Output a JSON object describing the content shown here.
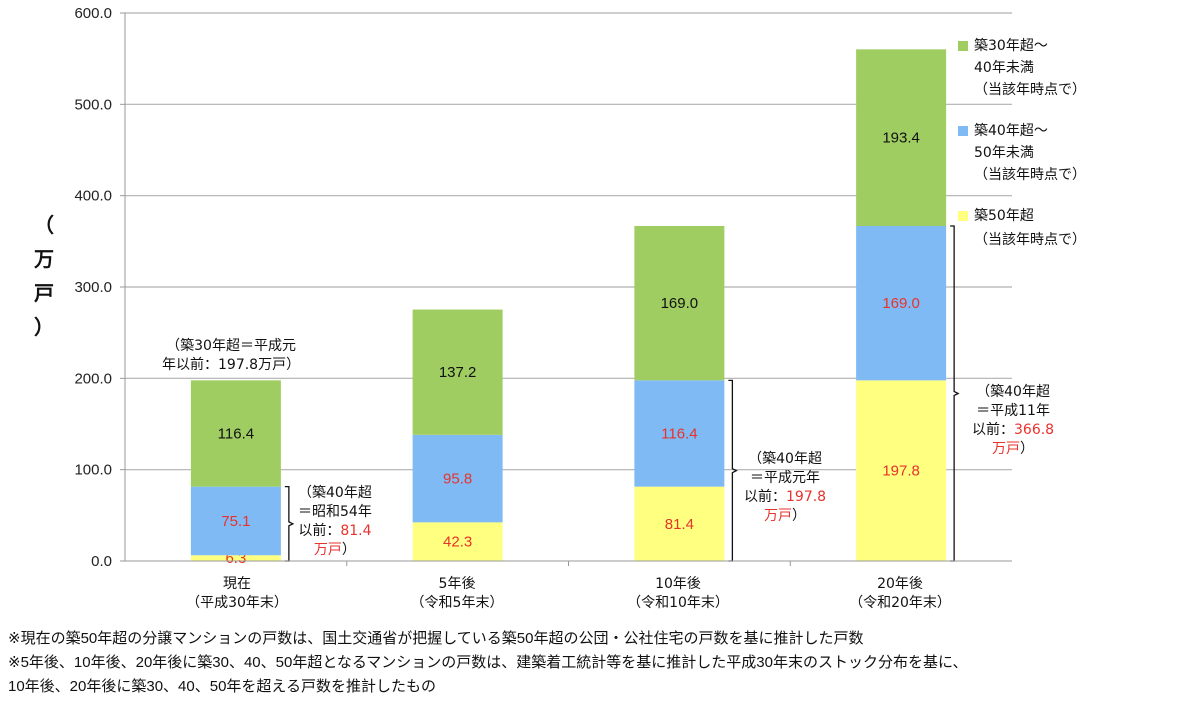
{
  "chart_data": {
    "type": "bar",
    "stacked": true,
    "title": "",
    "ylabel": [
      "（",
      "万",
      "戸",
      "）"
    ],
    "xlabel": "",
    "ylim": [
      0,
      600
    ],
    "yticks": [
      "0.0",
      "100.0",
      "200.0",
      "300.0",
      "400.0",
      "500.0",
      "600.0"
    ],
    "ytick_values": [
      0,
      100,
      200,
      300,
      400,
      500,
      600
    ],
    "grid": true,
    "categories": [
      {
        "line1": "現在",
        "line2": "（平成30年末）"
      },
      {
        "line1": "5年後",
        "line2": "（令和5年末）"
      },
      {
        "line1": "10年後",
        "line2": "（令和10年末）"
      },
      {
        "line1": "20年後",
        "line2": "（令和20年末）"
      }
    ],
    "series": [
      {
        "name": "築50年超（当該年時点で）",
        "color": "#ffff80",
        "label_color": "#e8322c",
        "values": [
          6.3,
          42.3,
          81.4,
          197.8
        ],
        "labels": [
          "6.3",
          "42.3",
          "81.4",
          "197.8"
        ]
      },
      {
        "name": "築40年超～50年未満（当該年時点で）",
        "color": "#7fbaf5",
        "label_color": "#e8322c",
        "values": [
          75.1,
          95.8,
          116.4,
          169.0
        ],
        "labels": [
          "75.1",
          "95.8",
          "116.4",
          "169.0"
        ]
      },
      {
        "name": "築30年超～40年未満（当該年時点で）",
        "color": "#9fcd62",
        "label_color": "#111111",
        "values": [
          116.4,
          137.2,
          169.0,
          193.4
        ],
        "labels": [
          "116.4",
          "137.2",
          "169.0",
          "193.4"
        ]
      }
    ],
    "legend_position": "right",
    "legend": [
      {
        "color": "#9fcd62",
        "line1": "築30年超～",
        "line2": "40年未満",
        "line3": "（当該年時点で）"
      },
      {
        "color": "#7fbaf5",
        "line1": "築40年超～",
        "line2": "50年未満",
        "line3": "（当該年時点で）"
      },
      {
        "color": "#ffff80",
        "line1": "築50年超",
        "line2": "",
        "line3": "（当該年時点で）"
      }
    ],
    "annotations": {
      "total_now": {
        "line1": "（築30年超＝平成元",
        "line2": "年以前：197.8万戸）"
      },
      "bracket_now": {
        "l1": "（築40年超",
        "l2": "＝昭和54年",
        "l3a": "以前：",
        "l3b": "81.4",
        "l4a": "万戸",
        "l4b": "）"
      },
      "bracket_10": {
        "l1": "（築40年超",
        "l2": "＝平成元年",
        "l3a": "以前：",
        "l3b": "197.8",
        "l4a": "万戸",
        "l4b": "）"
      },
      "bracket_20": {
        "l1": "（築40年超",
        "l2": "＝平成11年",
        "l3a": "以前：",
        "l3b": "366.8",
        "l4a": "万戸",
        "l4b": "）"
      }
    }
  },
  "notes": [
    "※現在の築50年超の分譲マンションの戸数は、国土交通省が把握している築50年超の公団・公社住宅の戸数を基に推計した戸数",
    "※5年後、10年後、20年後に築30、40、50年超となるマンションの戸数は、建築着工統計等を基に推計した平成30年末のストック分布を基に、",
    "10年後、20年後に築30、40、50年を超える戸数を推計したもの"
  ]
}
